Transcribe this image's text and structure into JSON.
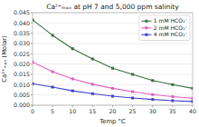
{
  "chart_data": {
    "type": "line",
    "title": "Ca²⁺ₘₐₓ at pH 7 and 5,000 ppm salinity",
    "xlabel": "Temp °C",
    "ylabel": "Ca²⁺ₘₐₓ (Molar)",
    "x": [
      0,
      5,
      10,
      15,
      20,
      25,
      30,
      35,
      40
    ],
    "series": [
      {
        "name": "1 mM HCO₃⁻",
        "color": "#3a6e40",
        "marker": "square",
        "values": [
          0.0415,
          0.034,
          0.0275,
          0.0225,
          0.018,
          0.015,
          0.012,
          0.01,
          0.0082
        ]
      },
      {
        "name": "2 mM HCO₃⁻",
        "color": "#e060c0",
        "marker": "square",
        "values": [
          0.021,
          0.0163,
          0.0128,
          0.0102,
          0.0082,
          0.0066,
          0.0052,
          0.0042,
          0.0034
        ]
      },
      {
        "name": "4 mM HCO₃⁻",
        "color": "#4040cc",
        "marker": "square",
        "values": [
          0.0105,
          0.0088,
          0.007,
          0.0056,
          0.0044,
          0.0035,
          0.0028,
          0.0022,
          0.0018
        ]
      }
    ],
    "xlim": [
      0,
      40
    ],
    "ylim": [
      0,
      0.045
    ],
    "xticks": [
      0,
      5,
      10,
      15,
      20,
      25,
      30,
      35,
      40
    ],
    "yticks": [
      {
        "value": 0,
        "label": "0.000"
      },
      0.005,
      {
        "value": 0.01,
        "label": "0.010"
      },
      0.015,
      {
        "value": 0.02,
        "label": "0.020"
      },
      0.025,
      {
        "value": 0.03,
        "label": "0.030"
      },
      0.035,
      {
        "value": 0.04,
        "label": "0.040"
      },
      0.045
    ],
    "grid": "y",
    "legend": "upper right"
  }
}
